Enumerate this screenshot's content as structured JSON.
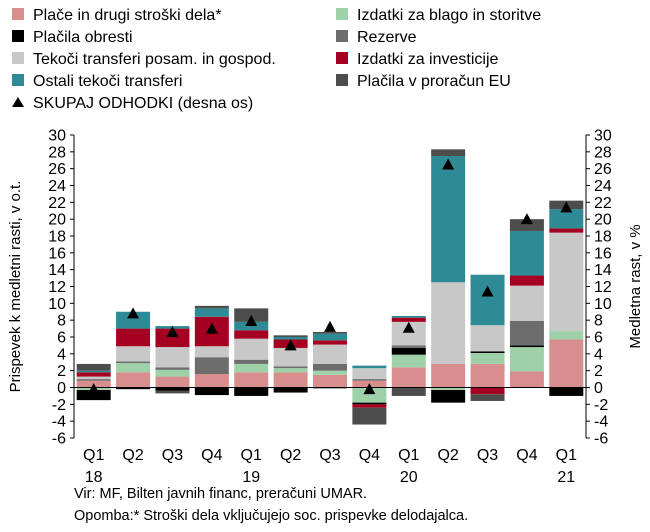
{
  "chart_data": {
    "type": "bar",
    "stacked": true,
    "categories": [
      "Q1",
      "Q2",
      "Q3",
      "Q4",
      "Q1",
      "Q2",
      "Q3",
      "Q4",
      "Q1",
      "Q2",
      "Q3",
      "Q4",
      "Q1"
    ],
    "year_labels": [
      {
        "index": 0,
        "label": "18"
      },
      {
        "index": 4,
        "label": "19"
      },
      {
        "index": 8,
        "label": "20"
      },
      {
        "index": 12,
        "label": "21"
      }
    ],
    "ylabel_left": "Prispevek k medletni rasti, v o.t.",
    "ylabel_right": "Medletna rast, v %",
    "ylim": [
      -6,
      30
    ],
    "yticks": [
      -6,
      -4,
      -2,
      0,
      2,
      4,
      6,
      8,
      10,
      12,
      14,
      16,
      18,
      20,
      22,
      24,
      26,
      28,
      30
    ],
    "legend_placement": "top",
    "series": [
      {
        "name": "Plače in drugi stroški dela*",
        "color": "#d98e8e",
        "values": [
          0.8,
          1.8,
          1.3,
          1.6,
          1.8,
          1.8,
          1.5,
          0.8,
          2.4,
          2.8,
          2.8,
          1.9,
          5.7
        ]
      },
      {
        "name": "Izdatki za blago in storitve",
        "color": "#9fd1a8",
        "values": [
          -0.3,
          1.1,
          0.8,
          0,
          1.0,
          0.5,
          0.5,
          -1.8,
          1.5,
          -0.3,
          1.3,
          2.9,
          1.0
        ]
      },
      {
        "name": "Plačila obresti",
        "color": "#000000",
        "values": [
          -1.2,
          -0.2,
          -0.4,
          -0.9,
          -1.0,
          -0.6,
          -0.1,
          -0.2,
          0.8,
          -1.5,
          0.2,
          0.2,
          -1.0
        ]
      },
      {
        "name": "Rezerve",
        "color": "#6d6d6d",
        "values": [
          0.2,
          0.2,
          0.3,
          2.0,
          0.5,
          0.2,
          0.8,
          0.2,
          0.3,
          0,
          0,
          2.9,
          0
        ]
      },
      {
        "name": "Tekoči transferi posam. in gospod.",
        "color": "#c8c8c8",
        "values": [
          0.3,
          1.8,
          2.4,
          1.3,
          2.5,
          2.2,
          2.3,
          1.3,
          2.8,
          9.7,
          3.1,
          4.2,
          11.7
        ]
      },
      {
        "name": "Izdatki za investicije",
        "color": "#a50021",
        "values": [
          0.5,
          2.1,
          2.2,
          3.5,
          1.0,
          1.0,
          0.5,
          -0.4,
          0.5,
          0,
          -0.8,
          1.2,
          0.5
        ]
      },
      {
        "name": "Ostali tekoči transferi",
        "color": "#2e8b95",
        "values": [
          0.2,
          2.0,
          0.3,
          1.0,
          1.0,
          0.3,
          0.8,
          0.3,
          0.2,
          15.0,
          6.0,
          5.3,
          2.3
        ]
      },
      {
        "name": "Plačila v proračun EU",
        "color": "#4d4d4d",
        "values": [
          0.8,
          0,
          -0.3,
          0.3,
          1.6,
          0.2,
          0.2,
          -2.0,
          -1.0,
          0.8,
          -0.8,
          1.4,
          1.0
        ]
      }
    ],
    "total": {
      "name": "SKUPAJ ODHODKI (desna os)",
      "axis": "right",
      "values": [
        -0.2,
        8.8,
        6.6,
        7.0,
        7.9,
        5.0,
        7.2,
        -0.2,
        7.1,
        26.5,
        11.4,
        20.0,
        21.4
      ]
    }
  },
  "notes": {
    "source": "Vir: MF, Bilten javnih financ, preračuni UMAR.",
    "footnote": "Opomba:* Stroški dela vključujejo soc. prispevke delodajalca."
  }
}
